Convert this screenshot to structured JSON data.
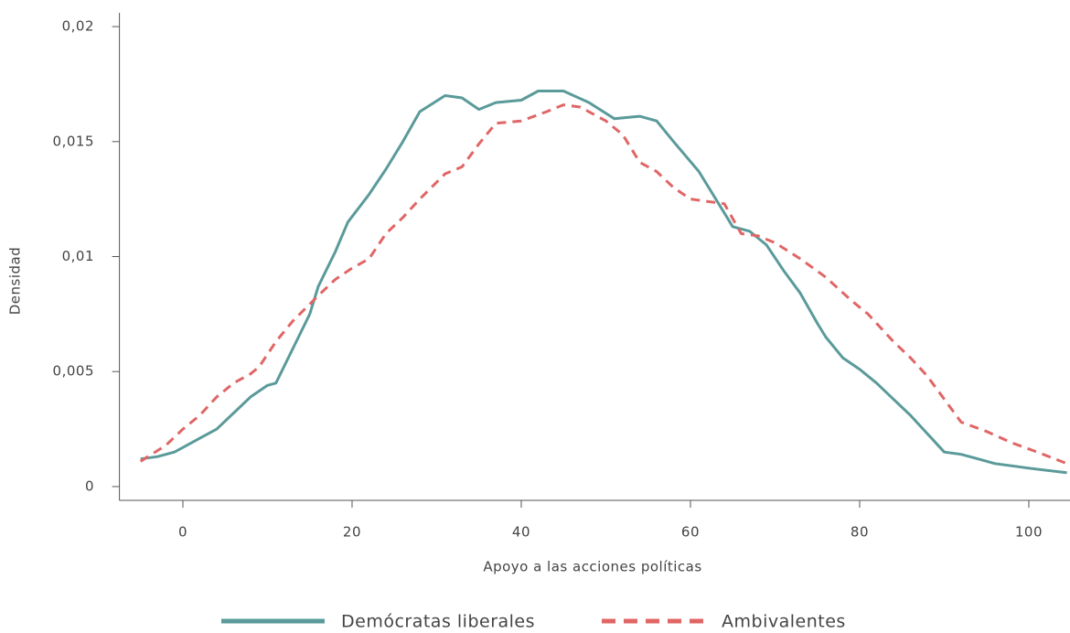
{
  "chart_data": {
    "type": "line",
    "xlabel": "Apoyo a las acciones políticas",
    "ylabel": "Densidad",
    "xlim": [
      -7.5,
      104.5
    ],
    "ylim": [
      -0.0006,
      0.0206
    ],
    "xticks": [
      0,
      20,
      40,
      60,
      80,
      100
    ],
    "yticks": [
      0,
      {
        "value": 0.005,
        "label": "0,005"
      },
      {
        "value": 0.01,
        "label": "0,01"
      },
      {
        "value": 0.015,
        "label": "0,015"
      },
      {
        "value": 0.02,
        "label": "0,02"
      }
    ],
    "legend": "bottom",
    "series": [
      {
        "name": "Demócratas liberales",
        "color": "#5b9a9a",
        "dash": false,
        "x": [
          -5,
          -3,
          -1,
          0,
          2,
          4,
          6,
          8,
          10,
          11,
          13,
          15,
          16,
          18,
          19.5,
          22,
          24,
          26,
          28,
          31,
          33,
          35,
          37,
          40,
          42,
          45,
          48,
          51,
          54,
          56,
          58,
          61,
          63,
          65,
          67,
          69,
          71,
          73,
          75,
          76,
          78,
          80,
          82,
          84,
          86,
          88,
          90,
          92,
          94,
          96,
          100,
          104.5
        ],
        "values": [
          0.0012,
          0.0013,
          0.0015,
          0.0017,
          0.0021,
          0.0025,
          0.0032,
          0.0039,
          0.0044,
          0.0045,
          0.006,
          0.0075,
          0.0087,
          0.0102,
          0.0115,
          0.0127,
          0.0138,
          0.015,
          0.0163,
          0.017,
          0.0169,
          0.0164,
          0.0167,
          0.0168,
          0.0172,
          0.0172,
          0.0167,
          0.016,
          0.0161,
          0.0159,
          0.015,
          0.0137,
          0.0125,
          0.0113,
          0.0111,
          0.0105,
          0.0094,
          0.0084,
          0.0071,
          0.0065,
          0.0056,
          0.0051,
          0.0045,
          0.0038,
          0.0031,
          0.0023,
          0.0015,
          0.0014,
          0.0012,
          0.001,
          0.0008,
          0.0006
        ]
      },
      {
        "name": "Ambivalentes",
        "color": "#e06666",
        "dash": true,
        "x": [
          -5,
          -2,
          0,
          2,
          4,
          6,
          8,
          9,
          11,
          13,
          16,
          18,
          20,
          22,
          24,
          26,
          28,
          31,
          33,
          35,
          37,
          40,
          43,
          45,
          47,
          50,
          52,
          54,
          56,
          58,
          60,
          62,
          64,
          66,
          68,
          70,
          73,
          76,
          79,
          81,
          84,
          86,
          88,
          90,
          92,
          95,
          98,
          101,
          104.5
        ],
        "values": [
          0.0011,
          0.0018,
          0.0025,
          0.0031,
          0.0039,
          0.0045,
          0.0049,
          0.0052,
          0.0063,
          0.0072,
          0.0083,
          0.009,
          0.0095,
          0.0099,
          0.011,
          0.0117,
          0.0125,
          0.0136,
          0.0139,
          0.0149,
          0.0158,
          0.0159,
          0.0163,
          0.0166,
          0.0165,
          0.0159,
          0.0153,
          0.0141,
          0.0137,
          0.013,
          0.0125,
          0.0124,
          0.0123,
          0.011,
          0.0109,
          0.0106,
          0.0099,
          0.0091,
          0.0081,
          0.0075,
          0.0063,
          0.0056,
          0.0048,
          0.0038,
          0.0028,
          0.0024,
          0.0019,
          0.0015,
          0.001
        ]
      }
    ]
  }
}
